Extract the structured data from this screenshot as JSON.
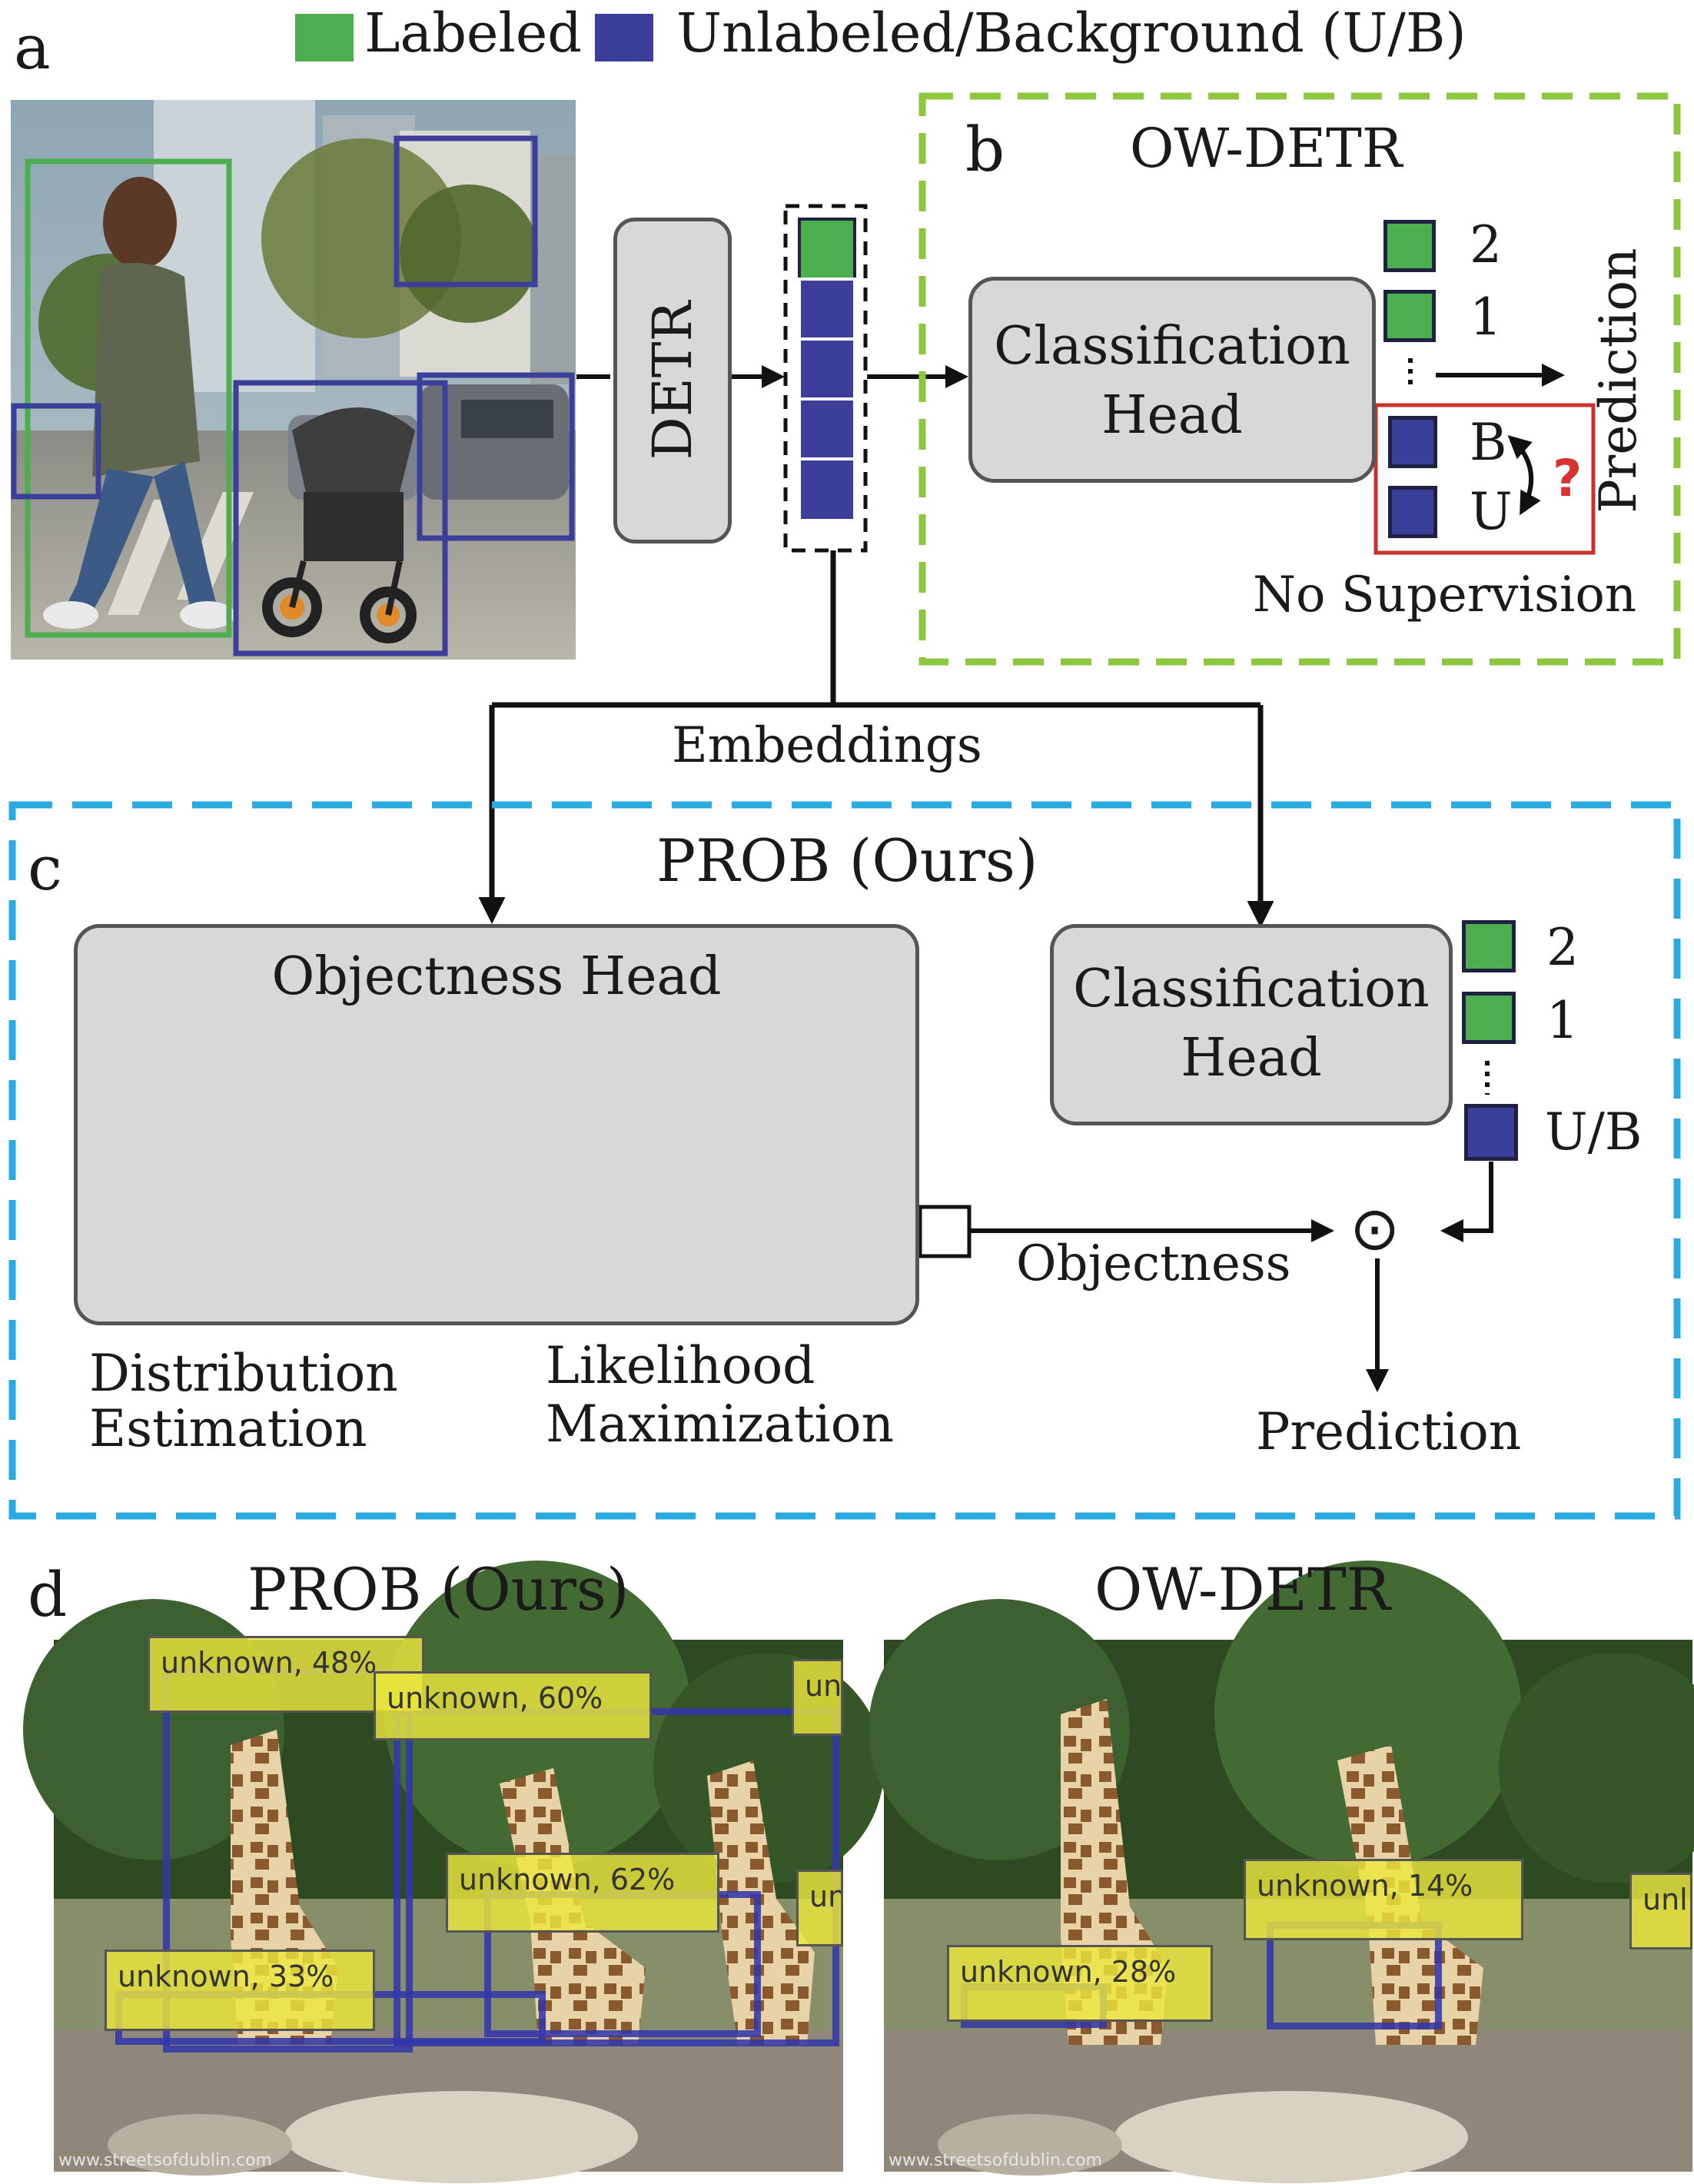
{
  "panel_labels": {
    "a": "a",
    "b": "b",
    "c": "c",
    "d": "d"
  },
  "legend": {
    "labeled": "Labeled",
    "unlabeled": "Unlabeled/Background (U/B)"
  },
  "colors": {
    "labeled": "#4cae4f",
    "unlabeled": "#3c3f99",
    "ow_detr_border": "#8dc63f",
    "prob_border": "#29abe2",
    "no_supervision_border": "#c8312e",
    "question": "#d7322d"
  },
  "detr": "DETR",
  "ow_detr": {
    "title": "OW-DETR",
    "classification_head": [
      "Classification",
      "Head"
    ],
    "outputs": [
      "2",
      "1",
      "B",
      "U"
    ],
    "question_mark": "?",
    "prediction": "Prediction",
    "no_supervision": "No Supervision"
  },
  "embeddings": "Embeddings",
  "prob": {
    "title": "PROB (Ours)",
    "objectness_head": "Objectness Head",
    "distribution_estimation": [
      "Distribution",
      "Estimation"
    ],
    "likelihood_maximization": [
      "Likelihood",
      "Maximization"
    ],
    "classification_head": [
      "Classification",
      "Head"
    ],
    "outputs": [
      "2",
      "1",
      "U/B"
    ],
    "objectness": "Objectness",
    "product_symbol": "⊙",
    "prediction": "Prediction"
  },
  "panel_d": {
    "left_title": "PROB (Ours)",
    "right_title": "OW-DETR",
    "left_detections": [
      "unknown, 48%",
      "unknown, 60%",
      "unkn",
      "unknown, 62%",
      "unkn",
      "unknown, 33%"
    ],
    "right_detections": [
      "unknown, 14%",
      "unknown, 28%",
      "unl"
    ],
    "watermark": "www.streetsofdublin.com"
  }
}
